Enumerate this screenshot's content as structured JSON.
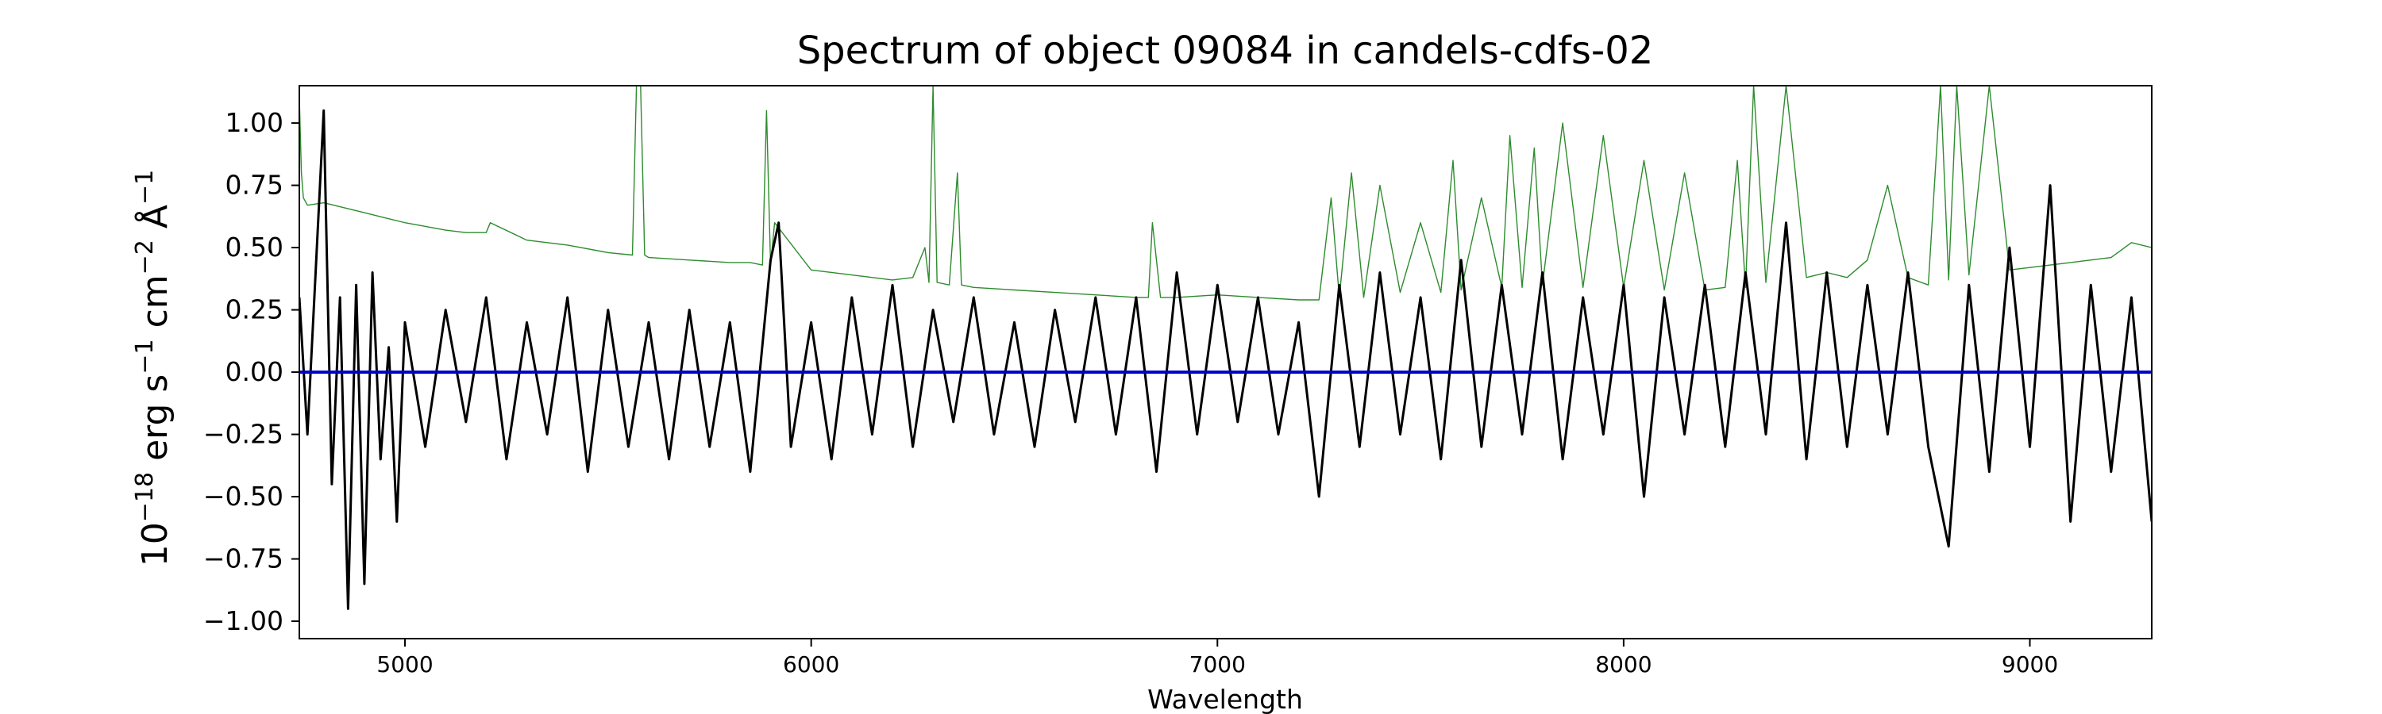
{
  "chart_data": {
    "type": "line",
    "title": "Spectrum of object 09084 in candels-cdfs-02",
    "xlabel": "Wavelength",
    "ylabel_parts": {
      "base": "10",
      "exp": "−18",
      "unit1": " erg s",
      "exp1": "−1",
      "unit2": " cm",
      "exp2": "−2",
      "unit3": " Å",
      "exp3": "−1"
    },
    "xlim": [
      4740,
      9300
    ],
    "ylim": [
      -1.07,
      1.15
    ],
    "xticks": [
      {
        "value": 5000,
        "label": "5000"
      },
      {
        "value": 6000,
        "label": "6000"
      },
      {
        "value": 7000,
        "label": "7000"
      },
      {
        "value": 8000,
        "label": "8000"
      },
      {
        "value": 9000,
        "label": "9000"
      }
    ],
    "yticks": [
      {
        "value": 1.0,
        "label": "1.00"
      },
      {
        "value": 0.75,
        "label": "0.75"
      },
      {
        "value": 0.5,
        "label": "0.50"
      },
      {
        "value": 0.25,
        "label": "0.25"
      },
      {
        "value": 0.0,
        "label": "0.00"
      },
      {
        "value": -0.25,
        "label": "−0.25"
      },
      {
        "value": -0.5,
        "label": "−0.50"
      },
      {
        "value": -0.75,
        "label": "−0.75"
      },
      {
        "value": -1.0,
        "label": "−1.00"
      }
    ],
    "grid": false,
    "colors": {
      "flux": "#000000",
      "error": "#2e8b2e",
      "model": "#0000cc"
    },
    "series": [
      {
        "role": "model",
        "x": [
          4740,
          9300
        ],
        "y": [
          0.0,
          0.0
        ]
      },
      {
        "role": "flux",
        "x": [
          4740,
          4760,
          4780,
          4800,
          4820,
          4840,
          4860,
          4880,
          4900,
          4920,
          4940,
          4960,
          4980,
          5000,
          5050,
          5100,
          5150,
          5200,
          5250,
          5300,
          5350,
          5400,
          5450,
          5500,
          5550,
          5600,
          5650,
          5700,
          5750,
          5800,
          5850,
          5900,
          5920,
          5950,
          6000,
          6050,
          6100,
          6150,
          6200,
          6250,
          6300,
          6350,
          6400,
          6450,
          6500,
          6550,
          6600,
          6650,
          6700,
          6750,
          6800,
          6850,
          6900,
          6950,
          7000,
          7050,
          7100,
          7150,
          7200,
          7250,
          7300,
          7350,
          7400,
          7450,
          7500,
          7550,
          7600,
          7650,
          7700,
          7750,
          7800,
          7850,
          7900,
          7950,
          8000,
          8050,
          8100,
          8150,
          8200,
          8250,
          8300,
          8350,
          8400,
          8450,
          8500,
          8550,
          8600,
          8650,
          8700,
          8750,
          8800,
          8850,
          8900,
          8950,
          9000,
          9050,
          9100,
          9150,
          9200,
          9250,
          9300
        ],
        "y": [
          0.3,
          -0.25,
          0.4,
          1.05,
          -0.45,
          0.3,
          -0.95,
          0.35,
          -0.85,
          0.4,
          -0.35,
          0.1,
          -0.6,
          0.2,
          -0.3,
          0.25,
          -0.2,
          0.3,
          -0.35,
          0.2,
          -0.25,
          0.3,
          -0.4,
          0.25,
          -0.3,
          0.2,
          -0.35,
          0.25,
          -0.3,
          0.2,
          -0.4,
          0.45,
          0.6,
          -0.3,
          0.2,
          -0.35,
          0.3,
          -0.25,
          0.35,
          -0.3,
          0.25,
          -0.2,
          0.3,
          -0.25,
          0.2,
          -0.3,
          0.25,
          -0.2,
          0.3,
          -0.25,
          0.3,
          -0.4,
          0.4,
          -0.25,
          0.35,
          -0.2,
          0.3,
          -0.25,
          0.2,
          -0.5,
          0.35,
          -0.3,
          0.4,
          -0.25,
          0.3,
          -0.35,
          0.45,
          -0.3,
          0.35,
          -0.25,
          0.4,
          -0.35,
          0.3,
          -0.25,
          0.35,
          -0.5,
          0.3,
          -0.25,
          0.35,
          -0.3,
          0.4,
          -0.25,
          0.6,
          -0.35,
          0.4,
          -0.3,
          0.35,
          -0.25,
          0.4,
          -0.3,
          -0.7,
          0.35,
          -0.4,
          0.5,
          -0.3,
          0.75,
          -0.6,
          0.35,
          -0.4,
          0.3,
          -0.6
        ]
      },
      {
        "role": "error",
        "x": [
          4740,
          4745,
          4750,
          4760,
          4800,
          4850,
          4900,
          4950,
          5000,
          5100,
          5150,
          5200,
          5210,
          5300,
          5400,
          5500,
          5560,
          5570,
          5580,
          5590,
          5600,
          5700,
          5800,
          5850,
          5880,
          5890,
          5900,
          5910,
          6000,
          6100,
          6200,
          6250,
          6280,
          6290,
          6300,
          6310,
          6340,
          6360,
          6370,
          6400,
          6500,
          6600,
          6700,
          6800,
          6830,
          6840,
          6860,
          6900,
          7000,
          7100,
          7200,
          7250,
          7280,
          7300,
          7330,
          7360,
          7400,
          7450,
          7500,
          7550,
          7580,
          7600,
          7650,
          7700,
          7720,
          7750,
          7780,
          7800,
          7850,
          7900,
          7950,
          8000,
          8050,
          8100,
          8150,
          8200,
          8250,
          8280,
          8300,
          8320,
          8350,
          8400,
          8450,
          8500,
          8550,
          8600,
          8650,
          8700,
          8750,
          8780,
          8800,
          8820,
          8850,
          8900,
          8950,
          9000,
          9100,
          9200,
          9250,
          9300
        ],
        "y": [
          1.1,
          0.8,
          0.7,
          0.67,
          0.68,
          0.66,
          0.64,
          0.62,
          0.6,
          0.57,
          0.56,
          0.56,
          0.6,
          0.53,
          0.51,
          0.48,
          0.47,
          1.15,
          1.15,
          0.47,
          0.46,
          0.45,
          0.44,
          0.44,
          0.43,
          1.05,
          0.43,
          0.6,
          0.41,
          0.39,
          0.37,
          0.38,
          0.5,
          0.36,
          1.15,
          0.36,
          0.35,
          0.8,
          0.35,
          0.34,
          0.33,
          0.32,
          0.31,
          0.3,
          0.3,
          0.6,
          0.3,
          0.3,
          0.31,
          0.3,
          0.29,
          0.29,
          0.7,
          0.3,
          0.8,
          0.3,
          0.75,
          0.32,
          0.6,
          0.32,
          0.85,
          0.33,
          0.7,
          0.34,
          0.95,
          0.34,
          0.9,
          0.35,
          1.0,
          0.34,
          0.95,
          0.34,
          0.85,
          0.33,
          0.8,
          0.33,
          0.34,
          0.85,
          0.34,
          1.15,
          0.36,
          1.15,
          0.38,
          0.4,
          0.38,
          0.45,
          0.75,
          0.38,
          0.35,
          1.15,
          0.37,
          1.15,
          0.39,
          1.15,
          0.41,
          0.42,
          0.44,
          0.46,
          0.52,
          0.5
        ]
      }
    ]
  }
}
